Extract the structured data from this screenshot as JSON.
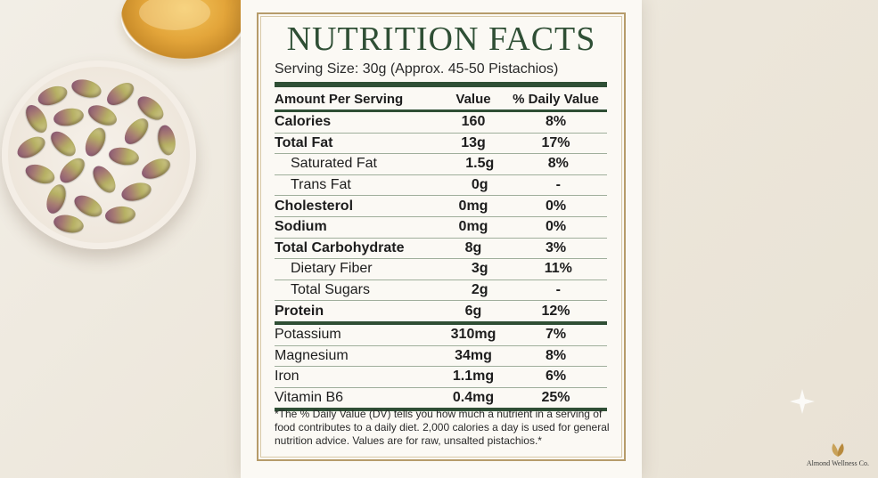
{
  "title": "NUTRITION FACTS",
  "serving_size": "Serving Size: 30g (Approx. 45-50 Pistachios)",
  "columns": {
    "name": "Amount Per Serving",
    "value": "Value",
    "dv": "% Daily Value"
  },
  "rows": [
    {
      "name": "Calories",
      "value": "160",
      "dv": "8%"
    },
    {
      "name": "Total Fat",
      "value": "13g",
      "dv": "17%"
    },
    {
      "name": "Saturated Fat",
      "value": "1.5g",
      "dv": "8%"
    },
    {
      "name": "Trans Fat",
      "value": "0g",
      "dv": "-"
    },
    {
      "name": "Cholesterol",
      "value": "0mg",
      "dv": "0%"
    },
    {
      "name": "Sodium",
      "value": "0mg",
      "dv": "0%"
    },
    {
      "name": "Total Carbohydrate",
      "value": "8g",
      "dv": "3%"
    },
    {
      "name": "Dietary Fiber",
      "value": "3g",
      "dv": "11%"
    },
    {
      "name": "Total Sugars",
      "value": "2g",
      "dv": "-"
    },
    {
      "name": "Protein",
      "value": "6g",
      "dv": "12%"
    },
    {
      "name": "Potassium",
      "value": "310mg",
      "dv": "7%"
    },
    {
      "name": "Magnesium",
      "value": "34mg",
      "dv": "8%"
    },
    {
      "name": "Iron",
      "value": "1.1mg",
      "dv": "6%"
    },
    {
      "name": "Vitamin B6",
      "value": "0.4mg",
      "dv": "25%"
    }
  ],
  "footnote": "*The % Daily Value (DV) tells you how much a nutrient in a serving of food contributes to a daily diet. 2,000 calories a day is used for general nutrition advice. Values are for raw, unsalted pistachios.*",
  "brand": {
    "name": "Almond Wellness Co.",
    "icon": "leaf-logo-icon"
  },
  "colors": {
    "accent": "#2f4f35",
    "frame": "#b69b6a"
  }
}
